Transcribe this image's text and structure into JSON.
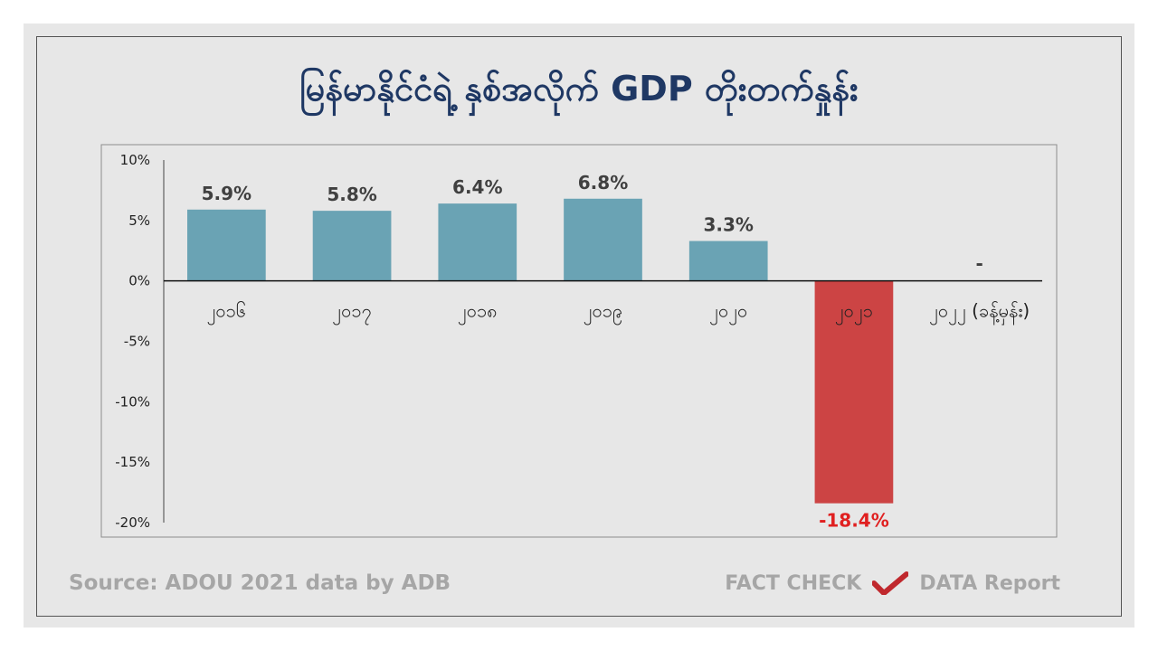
{
  "title": "မြန်မာနိုင်ငံရဲ့ နှစ်အလိုက် GDP တိုးတက်နှုန်း",
  "source": "Source: ADOU 2021 data by ADB",
  "brand": {
    "left": "FACT CHECK",
    "right": "DATA Report",
    "icon": "checkmark-icon",
    "icon_color": "#c0282d"
  },
  "colors": {
    "positive": "#6aa3b4",
    "negative": "#cc4444",
    "negative_label": "#e02020",
    "positive_label": "#404040"
  },
  "chart_data": {
    "type": "bar",
    "title": "မြန်မာနိုင်ငံရဲ့ နှစ်အလိုက် GDP တိုးတက်နှုန်း",
    "xlabel": "",
    "ylabel": "",
    "categories": [
      "၂၀၁၆",
      "၂၀၁၇",
      "၂၀၁၈",
      "၂၀၁၉",
      "၂၀၂၀",
      "၂၀၂၁",
      "၂၀၂၂ (ခန့်မှန်း)"
    ],
    "values": [
      5.9,
      5.8,
      6.4,
      6.8,
      3.3,
      -18.4,
      null
    ],
    "data_labels": [
      "5.9%",
      "5.8%",
      "6.4%",
      "6.8%",
      "3.3%",
      "-18.4%",
      "-"
    ],
    "ylim": [
      -20,
      10
    ],
    "yticks": [
      10,
      5,
      0,
      -5,
      -10,
      -15,
      -20
    ],
    "ytick_labels": [
      "10%",
      "5%",
      "0%",
      "-5%",
      "-10%",
      "-15%",
      "-20%"
    ],
    "grid": false,
    "legend": "none"
  }
}
